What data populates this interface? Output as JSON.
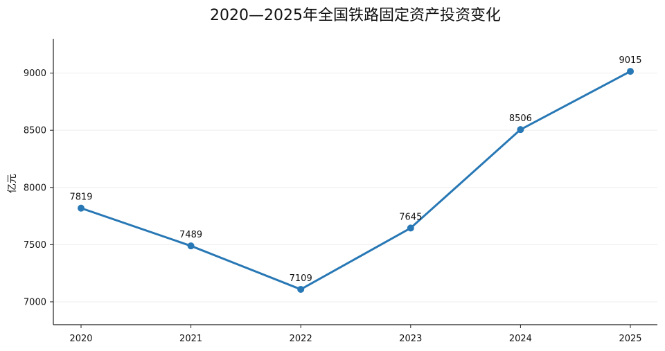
{
  "chart_data": {
    "type": "line",
    "title": "2020—2025年全国铁路固定资产投资变化",
    "xlabel": "",
    "ylabel": "亿元",
    "x": [
      "2020",
      "2021",
      "2022",
      "2023",
      "2024",
      "2025"
    ],
    "series": [
      {
        "values": [
          7819,
          7489,
          7109,
          7645,
          8506,
          9015
        ],
        "color": "#2878b5"
      }
    ],
    "data_labels": [
      "7819",
      "7489",
      "7109",
      "7645",
      "8506",
      "9015"
    ],
    "ylim": [
      6800,
      9300
    ],
    "yticks": [
      7000,
      7500,
      8000,
      8500,
      9000
    ],
    "grid": "horizontal",
    "legend": "none"
  }
}
